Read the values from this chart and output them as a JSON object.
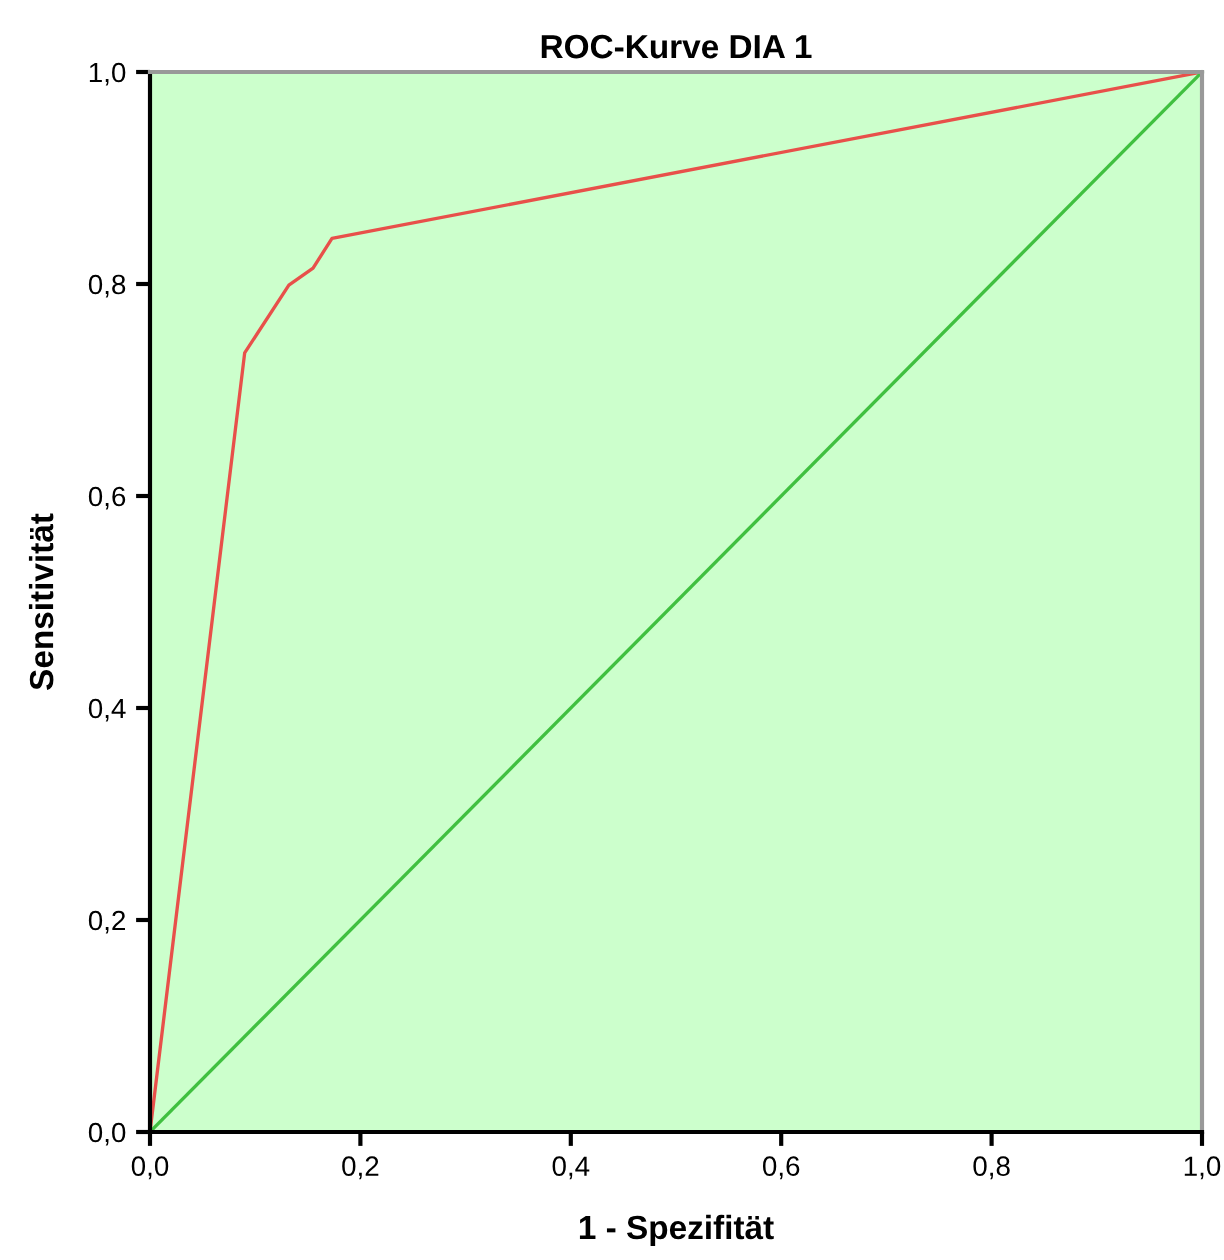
{
  "chart_data": {
    "type": "line",
    "title": "ROC-Kurve DIA 1",
    "xlabel": "1 - Spezifität",
    "ylabel": "Sensitivität",
    "series": [
      {
        "x": [
          0,
          0.09,
          0.132,
          0.155,
          0.173,
          1
        ],
        "values": [
          0,
          0.735,
          0.799,
          0.815,
          0.843,
          1
        ],
        "color": "#e8504a"
      },
      {
        "x": [
          0,
          1
        ],
        "values": [
          0,
          1
        ],
        "color": "#40c040"
      }
    ],
    "xlim": [
      0,
      1
    ],
    "ylim": [
      0,
      1
    ],
    "xticks": [
      {
        "value": 0,
        "label": "0,0"
      },
      {
        "value": 0.2,
        "label": "0,2"
      },
      {
        "value": 0.4,
        "label": "0,4"
      },
      {
        "value": 0.6,
        "label": "0,6"
      },
      {
        "value": 0.8,
        "label": "0,8"
      },
      {
        "value": 1,
        "label": "1,0"
      }
    ],
    "yticks": [
      {
        "value": 0,
        "label": "0,0"
      },
      {
        "value": 0.2,
        "label": "0,2"
      },
      {
        "value": 0.4,
        "label": "0,4"
      },
      {
        "value": 0.6,
        "label": "0,6"
      },
      {
        "value": 0.8,
        "label": "0,8"
      },
      {
        "value": 1,
        "label": "1,0"
      }
    ],
    "grid": false,
    "marker": "none",
    "line_style": "solid"
  }
}
